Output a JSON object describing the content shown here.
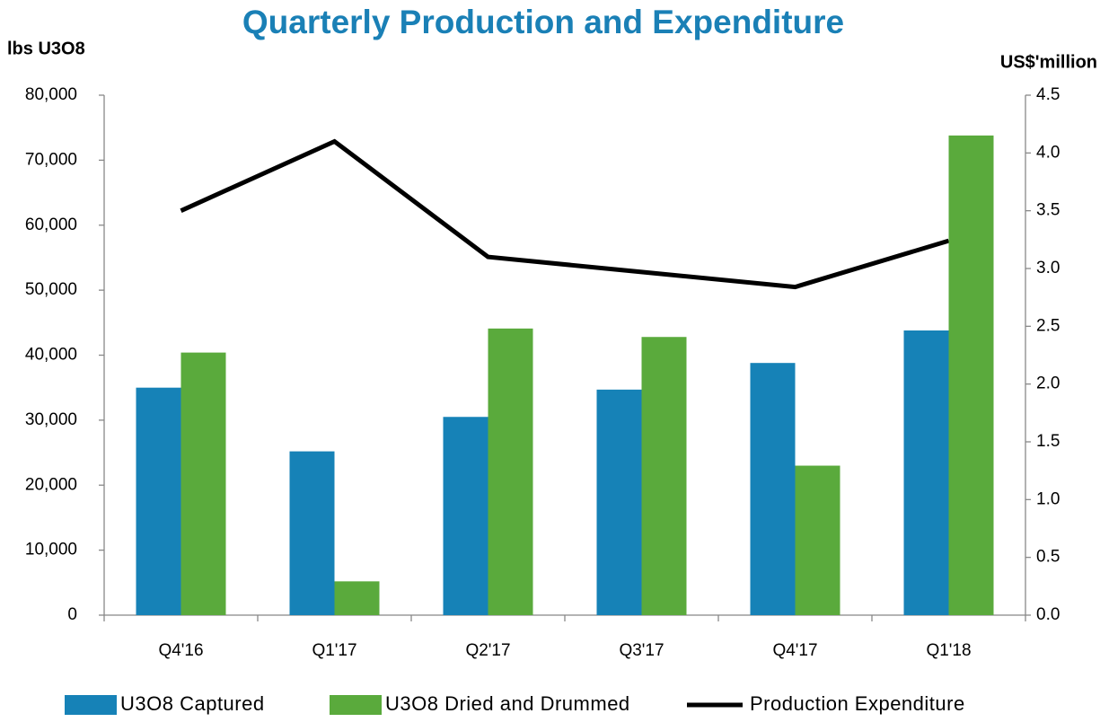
{
  "chart_data": {
    "type": "bar_line",
    "title": "Quarterly Production and Expenditure",
    "y_label": "lbs U3O8",
    "y2_label": "US$'million",
    "categories": [
      "Q4'16",
      "Q1'17",
      "Q2'17",
      "Q3'17",
      "Q4'17",
      "Q1'18"
    ],
    "series": [
      {
        "name": "U3O8 Captured",
        "type": "bar",
        "color": "#1682b7",
        "values": [
          35000,
          25200,
          30500,
          34700,
          38800,
          43800
        ]
      },
      {
        "name": "U3O8 Dried and Drummed",
        "type": "bar",
        "color": "#5aaa3c",
        "values": [
          40400,
          5200,
          44100,
          42800,
          23000,
          73800
        ]
      },
      {
        "name": "Production Expenditure",
        "type": "line",
        "axis": "y2",
        "color": "#000000",
        "values": [
          3.5,
          4.1,
          3.1,
          2.97,
          2.84,
          3.24
        ]
      }
    ],
    "ylim": [
      0,
      80000
    ],
    "yticks": [
      0,
      {
        "value": 10000,
        "label": "10,000"
      },
      {
        "value": 20000,
        "label": "20,000"
      },
      {
        "value": 30000,
        "label": "30,000"
      },
      {
        "value": 40000,
        "label": "40,000"
      },
      {
        "value": 50000,
        "label": "50,000"
      },
      {
        "value": 60000,
        "label": "60,000"
      },
      {
        "value": 70000,
        "label": "70,000"
      },
      {
        "value": 80000,
        "label": "80,000"
      }
    ],
    "y2lim": [
      0,
      4.5
    ],
    "y2ticks": [
      {
        "value": 0,
        "label": "0.0"
      },
      0.5,
      {
        "value": 1,
        "label": "1.0"
      },
      1.5,
      {
        "value": 2,
        "label": "2.0"
      },
      2.5,
      {
        "value": 3,
        "label": "3.0"
      },
      3.5,
      {
        "value": 4,
        "label": "4.0"
      },
      4.5
    ],
    "grid": false,
    "legend": "bottom"
  }
}
